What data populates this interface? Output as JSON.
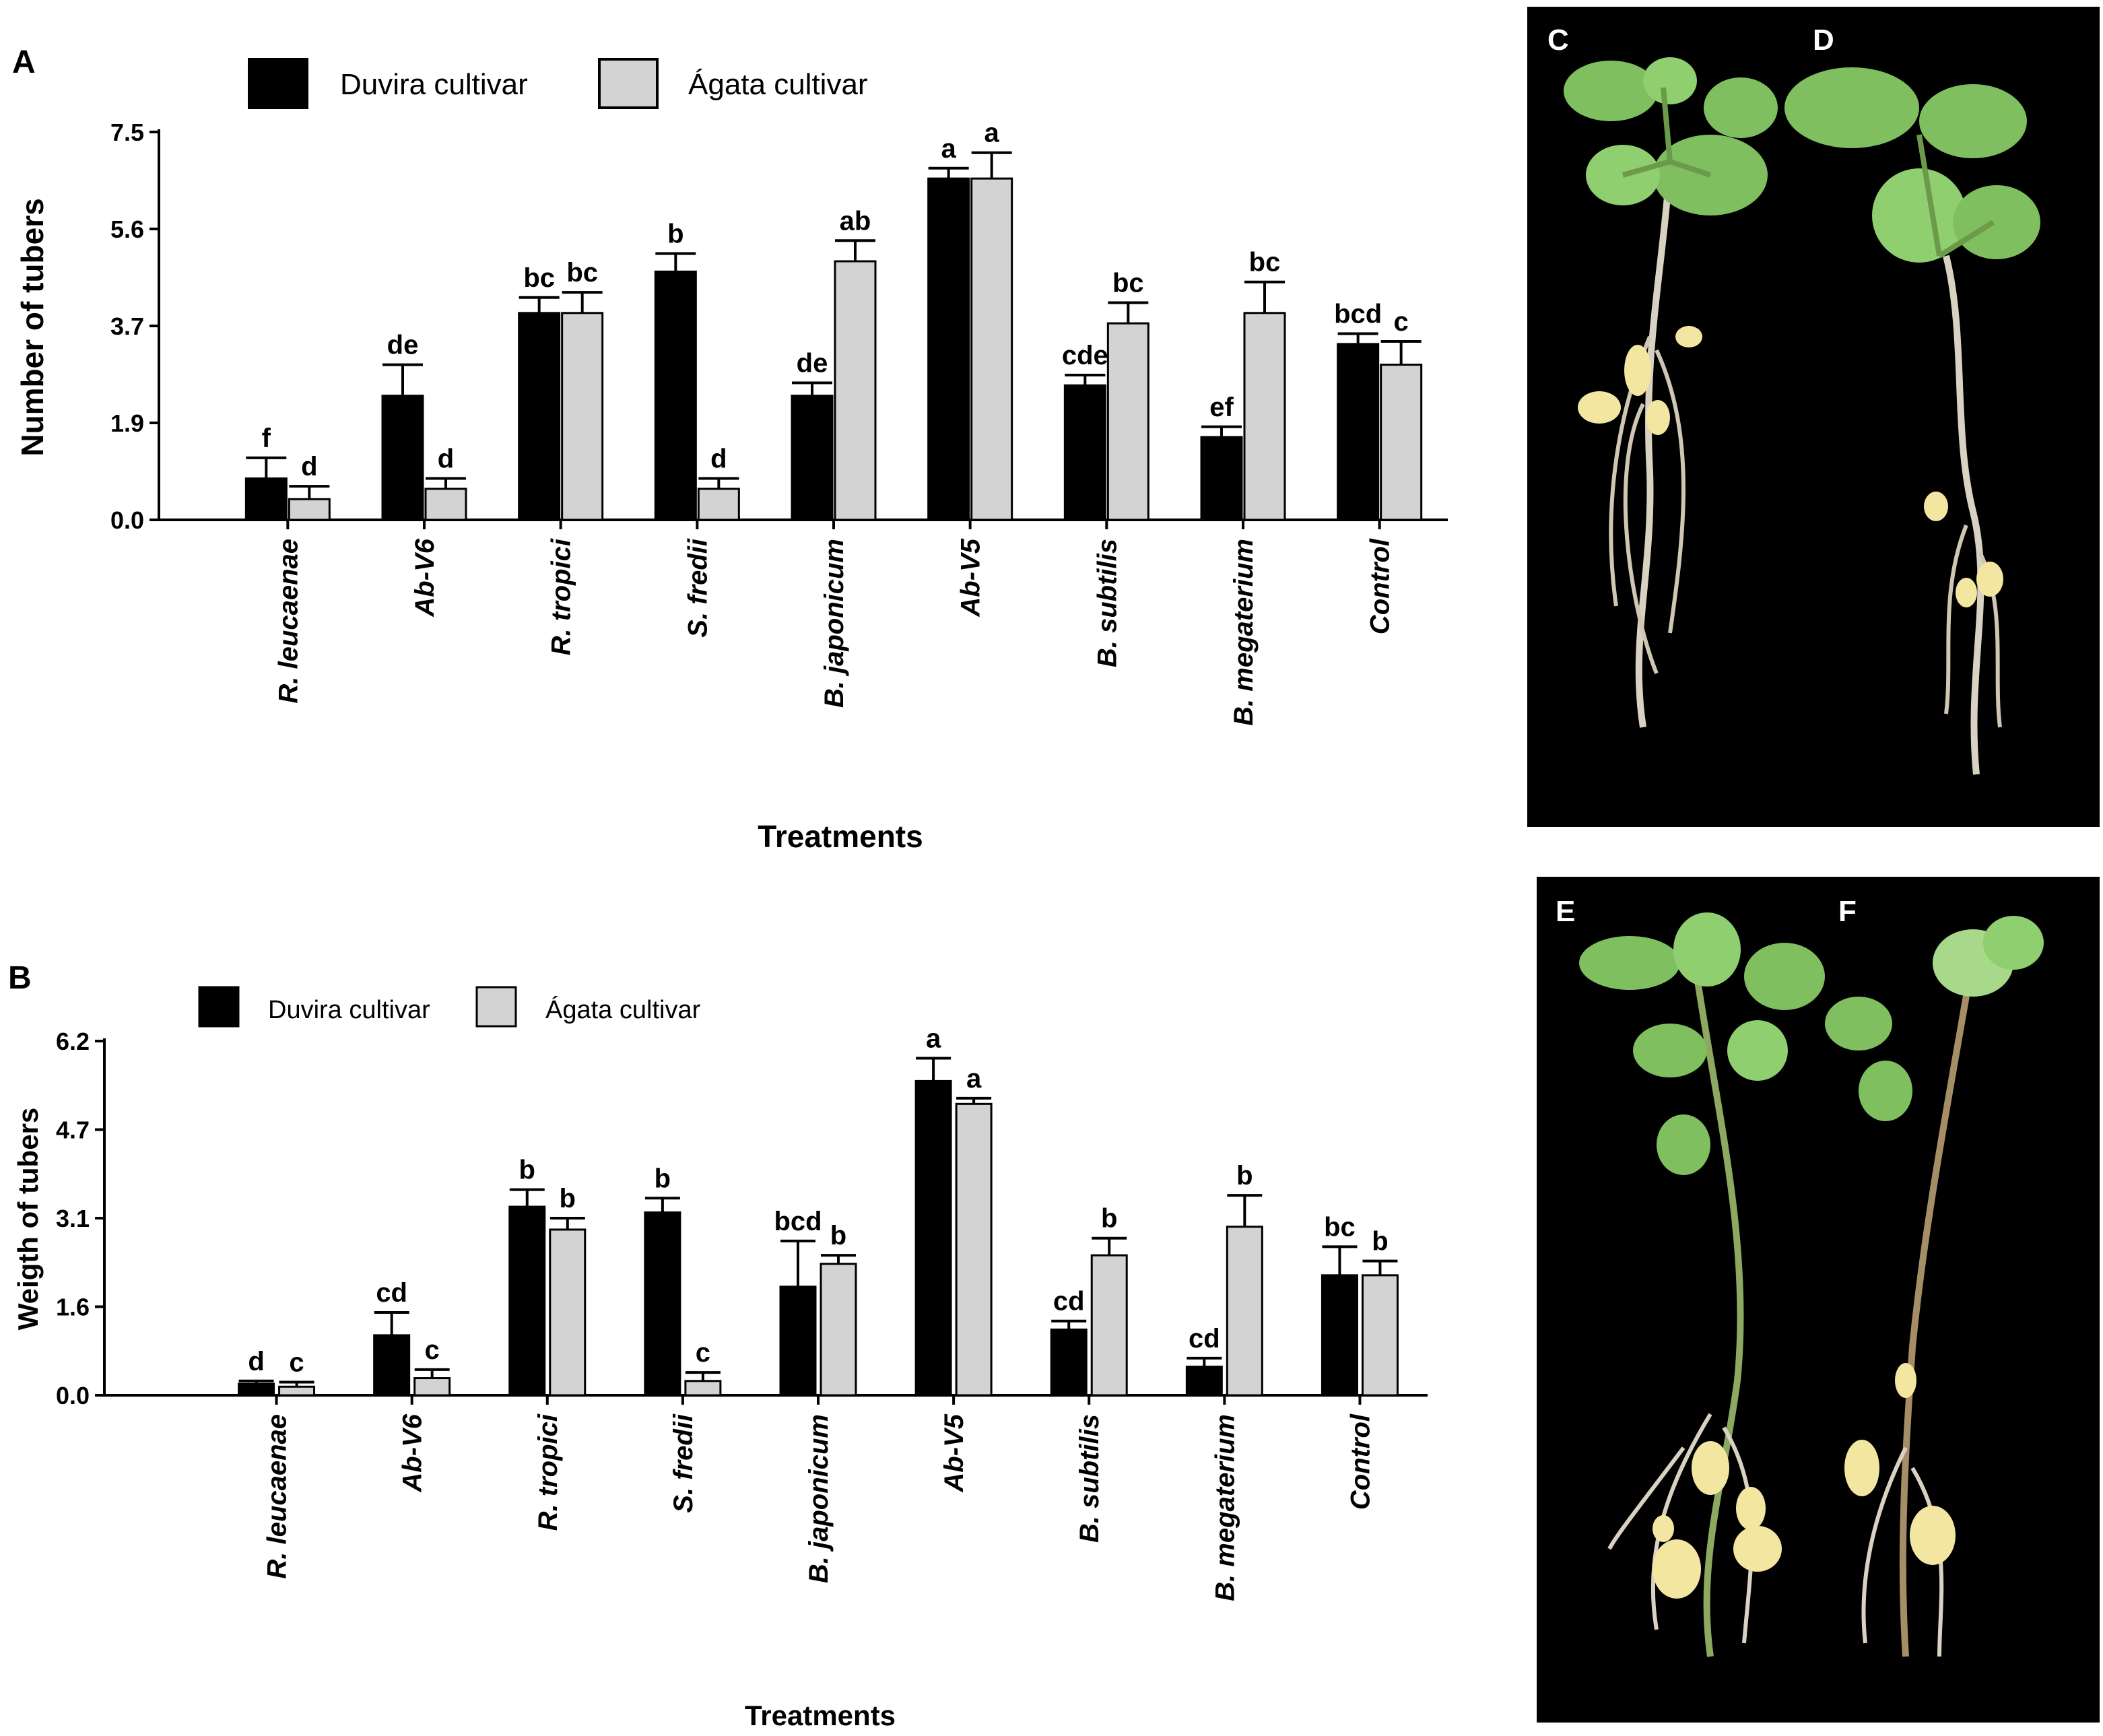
{
  "panels": {
    "a": "A",
    "b": "B"
  },
  "photos": [
    {
      "label": "C",
      "description": "potato-plant-with-tubers"
    },
    {
      "label": "D",
      "description": "potato-plant-with-tubers"
    },
    {
      "label": "E",
      "description": "potato-plant-with-tubers"
    },
    {
      "label": "F",
      "description": "potato-plant-with-tubers"
    }
  ],
  "colors": {
    "duvira": "#000000",
    "agata": "#d3d3d3",
    "photo_bg": "#000000",
    "leaf": "#7fbf5f",
    "root": "#d9d2c2",
    "tuber": "#f3e6a0"
  },
  "chart_data": [
    {
      "type": "bar",
      "panel": "A",
      "categories": [
        "R. leucaenae",
        "Ab-V6",
        "R. tropici",
        "S. fredii",
        "B. japonicum",
        "Ab-V5",
        "B. subtilis",
        "B. megaterium",
        "Control"
      ],
      "series": [
        {
          "name": "Duvira cultivar",
          "values": [
            0.8,
            2.4,
            4.0,
            4.8,
            2.4,
            6.6,
            2.6,
            1.6,
            3.4
          ],
          "errors": [
            0.4,
            0.6,
            0.3,
            0.35,
            0.25,
            0.2,
            0.2,
            0.2,
            0.2
          ],
          "letters": [
            "f",
            "de",
            "bc",
            "b",
            "de",
            "a",
            "cde",
            "ef",
            "bcd"
          ]
        },
        {
          "name": "Ágata cultivar",
          "values": [
            0.4,
            0.6,
            4.0,
            0.6,
            5.0,
            6.6,
            3.8,
            4.0,
            3.0
          ],
          "errors": [
            0.25,
            0.2,
            0.4,
            0.2,
            0.4,
            0.5,
            0.4,
            0.6,
            0.45
          ],
          "letters": [
            "d",
            "d",
            "bc",
            "d",
            "ab",
            "a",
            "bc",
            "bc",
            "c"
          ]
        }
      ],
      "yticks": [
        "0.0",
        "1.9",
        "3.7",
        "5.6",
        "7.5"
      ],
      "ylim": [
        0,
        7.5
      ],
      "xlabel": "Treatments",
      "ylabel": "Number of tubers",
      "legend": "top-left"
    },
    {
      "type": "bar",
      "panel": "B",
      "categories": [
        "R. leucaenae",
        "Ab-V6",
        "R. tropici",
        "S. fredii",
        "B. japonicum",
        "Ab-V5",
        "B. subtilis",
        "B. megaterium",
        "Control"
      ],
      "series": [
        {
          "name": "Duvira cultivar",
          "values": [
            0.2,
            1.05,
            3.3,
            3.2,
            1.9,
            5.5,
            1.15,
            0.5,
            2.1
          ],
          "errors": [
            0.05,
            0.4,
            0.3,
            0.25,
            0.8,
            0.4,
            0.15,
            0.15,
            0.5
          ],
          "letters": [
            "d",
            "cd",
            "b",
            "b",
            "bcd",
            "a",
            "cd",
            "cd",
            "bc"
          ]
        },
        {
          "name": "Ágata cultivar",
          "values": [
            0.15,
            0.3,
            2.9,
            0.25,
            2.3,
            5.1,
            2.45,
            2.95,
            2.1
          ],
          "errors": [
            0.08,
            0.15,
            0.2,
            0.15,
            0.15,
            0.1,
            0.3,
            0.55,
            0.25
          ],
          "letters": [
            "c",
            "c",
            "b",
            "c",
            "b",
            "a",
            "b",
            "b",
            "b"
          ]
        }
      ],
      "yticks": [
        "0.0",
        "1.6",
        "3.1",
        "4.7",
        "6.2"
      ],
      "ylim": [
        0,
        6.2
      ],
      "xlabel": "Treatments",
      "ylabel": "Weigth of tubers",
      "legend": "top-left"
    }
  ]
}
